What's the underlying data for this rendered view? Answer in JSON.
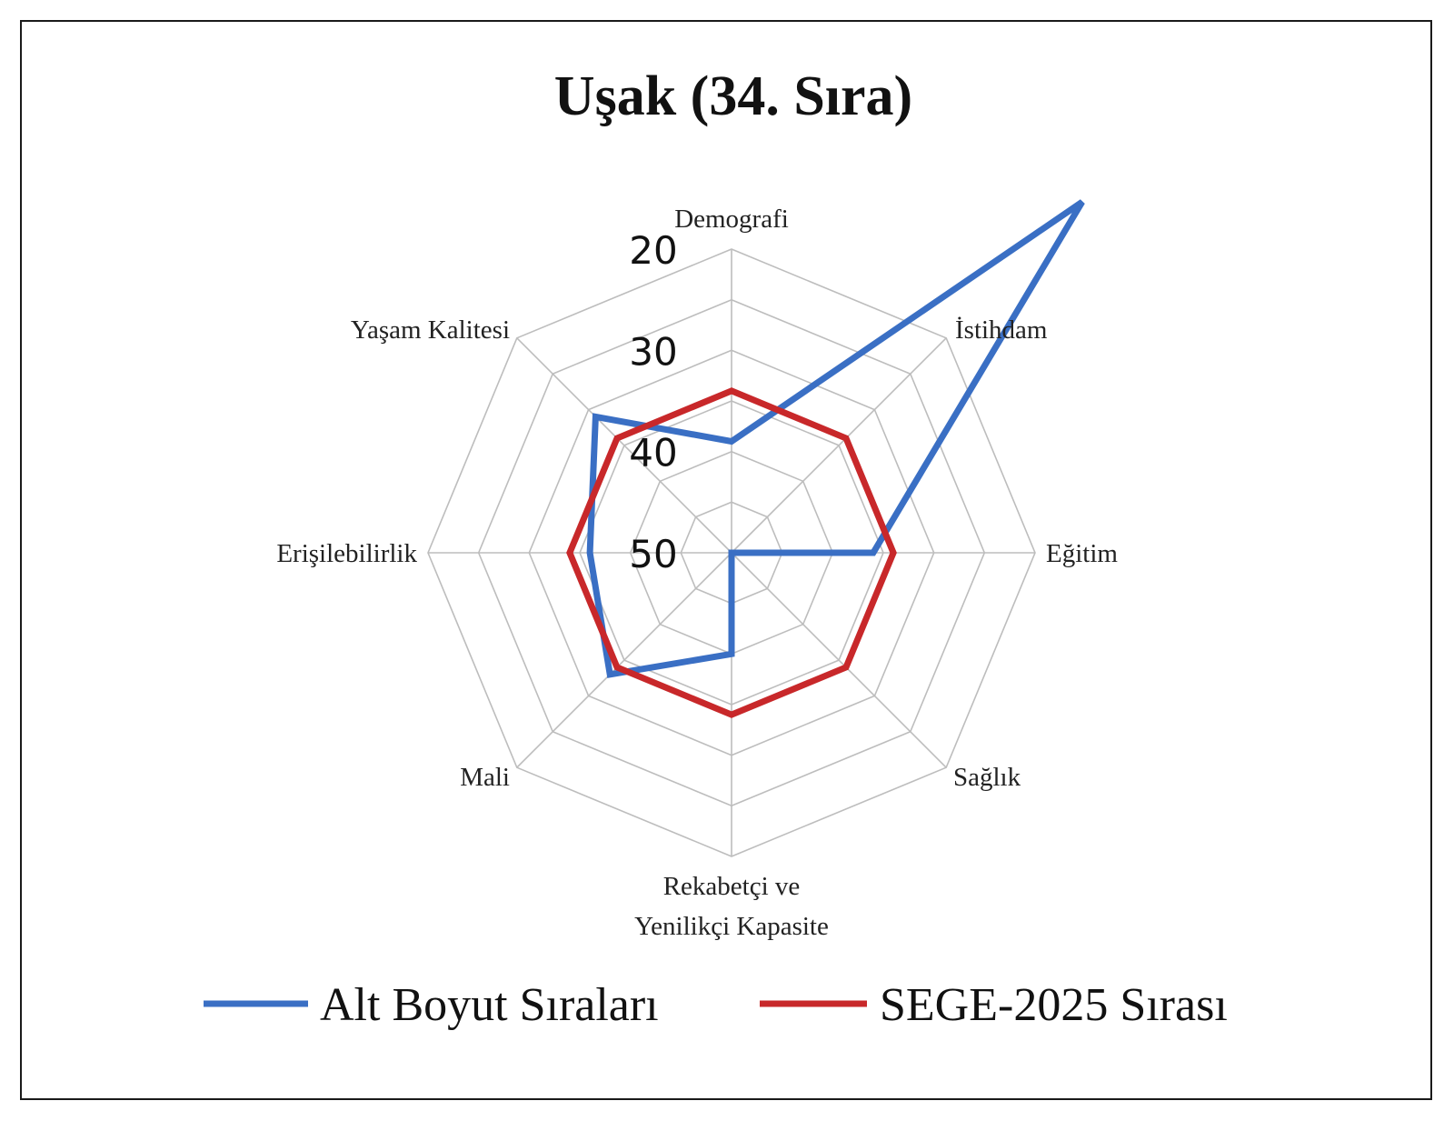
{
  "chart_data": {
    "type": "radar",
    "title": "Uşak (34. Sıra)",
    "categories": [
      "Demografi",
      "İstihdam",
      "Eğitim",
      "Sağlık",
      "Rekabetçi ve Yenilikçi Kapasite",
      "Mali",
      "Erişilebilirlik",
      "Yaşam Kalitesi"
    ],
    "category_lines": [
      [
        "Demografi"
      ],
      [
        "İstihdam"
      ],
      [
        "Eğitim"
      ],
      [
        "Sağlık"
      ],
      [
        "Rekabetçi ve",
        "Yenilikçi Kapasite"
      ],
      [
        "Mali"
      ],
      [
        "Erişilebilirlik"
      ],
      [
        "Yaşam Kalitesi"
      ]
    ],
    "axis": {
      "min": 50,
      "max": 20,
      "reversed": true,
      "ticks": [
        "20",
        "30",
        "40",
        "50"
      ],
      "grid_values": [
        20,
        25,
        30,
        35,
        40,
        45,
        50
      ]
    },
    "series": [
      {
        "name": "Alt Boyut Sıraları",
        "color": "#3a6fc4",
        "values": [
          39,
          1,
          36,
          50,
          40,
          33,
          36,
          31
        ]
      },
      {
        "name": "SEGE-2025 Sırası",
        "color": "#c8282a",
        "values": [
          34,
          34,
          34,
          34,
          34,
          34,
          34,
          34
        ]
      }
    ],
    "legend": "bottom",
    "grid": true
  }
}
